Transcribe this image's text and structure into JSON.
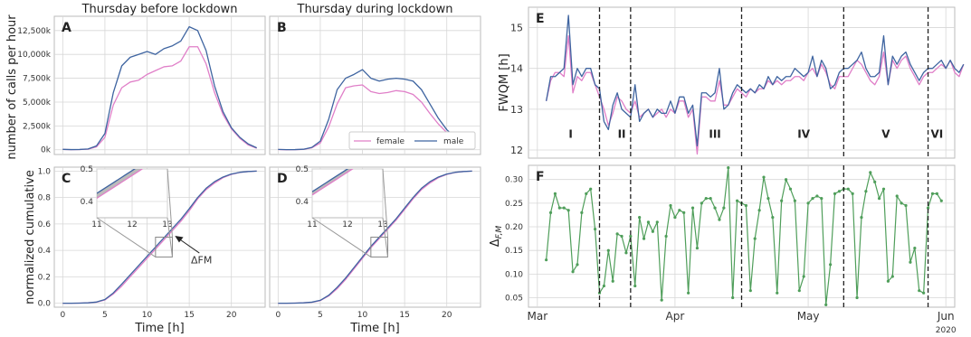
{
  "colors": {
    "female": "#e07fc8",
    "male": "#3e64a0",
    "delta": "#4f9e5a",
    "grid": "#d7d7d7",
    "frame": "#bbbbbb"
  },
  "chart_data": [
    {
      "id": "A",
      "type": "line",
      "letter": "A",
      "title": "Thursday before lockdown",
      "ylabel": "number of calls per hour",
      "yticks": [
        "0k",
        "2,500k",
        "5,000k",
        "7,500k",
        "10,000k",
        "12,500k"
      ],
      "ylim": [
        -500,
        14000
      ],
      "xlim": [
        -1,
        24
      ],
      "x": [
        0,
        1,
        2,
        3,
        4,
        5,
        6,
        7,
        8,
        9,
        10,
        11,
        12,
        13,
        14,
        15,
        16,
        17,
        18,
        19,
        20,
        21,
        22,
        23
      ],
      "series": [
        {
          "name": "female",
          "values": [
            30,
            10,
            20,
            60,
            300,
            1300,
            4700,
            6500,
            7100,
            7300,
            7900,
            8300,
            8700,
            8800,
            9300,
            10800,
            10800,
            9000,
            6000,
            3700,
            2200,
            1200,
            500,
            150
          ]
        },
        {
          "name": "male",
          "values": [
            40,
            15,
            25,
            80,
            400,
            1700,
            6000,
            8800,
            9700,
            10000,
            10300,
            10000,
            10600,
            10900,
            11400,
            12900,
            12500,
            10400,
            6700,
            4000,
            2300,
            1300,
            600,
            200
          ]
        }
      ]
    },
    {
      "id": "B",
      "type": "line",
      "letter": "B",
      "title": "Thursday during lockdown",
      "ylim": [
        -500,
        14000
      ],
      "xlim": [
        -1,
        24
      ],
      "legend": [
        "female",
        "male"
      ],
      "legend_position": "bottom-right",
      "x": [
        0,
        1,
        2,
        3,
        4,
        5,
        6,
        7,
        8,
        9,
        10,
        11,
        12,
        13,
        14,
        15,
        16,
        17,
        18,
        19,
        20,
        21,
        22,
        23
      ],
      "series": [
        {
          "name": "female",
          "values": [
            20,
            5,
            10,
            40,
            200,
            700,
            2400,
            4800,
            6500,
            6700,
            6800,
            6100,
            5900,
            6000,
            6200,
            6100,
            5800,
            5000,
            3800,
            2700,
            1800,
            1100,
            500,
            150
          ]
        },
        {
          "name": "male",
          "values": [
            30,
            10,
            15,
            50,
            250,
            900,
            3200,
            6300,
            7500,
            7900,
            8400,
            7500,
            7200,
            7400,
            7500,
            7400,
            7200,
            6300,
            4800,
            3300,
            2100,
            1300,
            600,
            200
          ]
        }
      ]
    },
    {
      "id": "C",
      "type": "line",
      "letter": "C",
      "ylabel": "normalized cumulative",
      "xlabel": "Time [h]",
      "yticks": [
        "0.0",
        "0.2",
        "0.4",
        "0.6",
        "0.8",
        "1.0"
      ],
      "xticks": [
        "0",
        "5",
        "10",
        "15",
        "20"
      ],
      "ylim": [
        -0.03,
        1.03
      ],
      "xlim": [
        -1,
        24
      ],
      "annotation": "ΔFM",
      "inset": {
        "xticks": [
          "11",
          "12",
          "13"
        ],
        "yticks": [
          "0.4",
          "0.5"
        ],
        "xlim": [
          11,
          13
        ],
        "ylim": [
          0.35,
          0.5
        ]
      },
      "x": [
        0,
        1,
        2,
        3,
        4,
        5,
        6,
        7,
        8,
        9,
        10,
        11,
        12,
        13,
        14,
        15,
        16,
        17,
        18,
        19,
        20,
        21,
        22,
        23
      ],
      "series": [
        {
          "name": "female",
          "values": [
            0.0,
            0.0,
            0.001,
            0.003,
            0.008,
            0.025,
            0.07,
            0.13,
            0.2,
            0.27,
            0.34,
            0.41,
            0.48,
            0.55,
            0.62,
            0.7,
            0.79,
            0.86,
            0.91,
            0.95,
            0.975,
            0.99,
            0.997,
            1.0
          ]
        },
        {
          "name": "male",
          "values": [
            0.0,
            0.0,
            0.001,
            0.003,
            0.009,
            0.028,
            0.078,
            0.145,
            0.215,
            0.285,
            0.355,
            0.425,
            0.495,
            0.565,
            0.635,
            0.715,
            0.8,
            0.87,
            0.92,
            0.955,
            0.978,
            0.991,
            0.997,
            1.0
          ]
        }
      ]
    },
    {
      "id": "D",
      "type": "line",
      "letter": "D",
      "xlabel": "Time [h]",
      "xticks": [
        "0",
        "5",
        "10",
        "15",
        "20"
      ],
      "ylim": [
        -0.03,
        1.03
      ],
      "xlim": [
        -1,
        24
      ],
      "inset": {
        "xticks": [
          "11",
          "12",
          "13"
        ],
        "yticks": [
          "0.4",
          "0.5"
        ],
        "xlim": [
          11,
          13
        ],
        "ylim": [
          0.35,
          0.5
        ]
      },
      "x": [
        0,
        1,
        2,
        3,
        4,
        5,
        6,
        7,
        8,
        9,
        10,
        11,
        12,
        13,
        14,
        15,
        16,
        17,
        18,
        19,
        20,
        21,
        22,
        23
      ],
      "series": [
        {
          "name": "female",
          "values": [
            0.0,
            0.0,
            0.001,
            0.003,
            0.007,
            0.02,
            0.055,
            0.11,
            0.18,
            0.26,
            0.34,
            0.42,
            0.49,
            0.56,
            0.63,
            0.71,
            0.79,
            0.86,
            0.91,
            0.95,
            0.975,
            0.99,
            0.997,
            1.0
          ]
        },
        {
          "name": "male",
          "values": [
            0.0,
            0.0,
            0.001,
            0.003,
            0.008,
            0.022,
            0.06,
            0.12,
            0.19,
            0.27,
            0.35,
            0.43,
            0.5,
            0.57,
            0.64,
            0.72,
            0.8,
            0.87,
            0.92,
            0.955,
            0.978,
            0.991,
            0.997,
            1.0
          ]
        }
      ]
    },
    {
      "id": "E",
      "type": "line",
      "letter": "E",
      "ylabel": "FWQM [h]",
      "yticks": [
        "12",
        "13",
        "14",
        "15"
      ],
      "ylim": [
        11.8,
        15.5
      ],
      "xlim": [
        -2,
        94
      ],
      "phases": [
        "I",
        "II",
        "III",
        "IV",
        "V",
        "VI"
      ],
      "phase_x": [
        10,
        23,
        54,
        78,
        70,
        88
      ],
      "dividers_day": [
        14,
        21,
        46,
        94,
        109
      ],
      "series": [
        {
          "name": "female",
          "values": [
            13.2,
            13.7,
            13.9,
            13.9,
            13.8,
            14.8,
            13.4,
            13.8,
            13.7,
            13.9,
            13.9,
            13.6,
            13.3,
            13.0,
            12.6,
            12.9,
            13.3,
            13.2,
            13.0,
            12.9,
            13.2,
            12.8,
            12.9,
            13.0,
            12.8,
            12.9,
            13.0,
            12.8,
            13.0,
            12.9,
            13.2,
            13.2,
            12.8,
            13.0,
            11.9,
            13.3,
            13.3,
            13.2,
            13.2,
            13.7,
            13.1,
            13.1,
            13.3,
            13.5,
            13.4,
            13.3,
            13.5,
            13.4,
            13.5,
            13.5,
            13.7,
            13.6,
            13.7,
            13.6,
            13.7,
            13.7,
            13.8,
            13.8,
            13.7,
            13.9,
            14.0,
            13.8,
            14.1,
            13.9,
            13.6,
            13.5,
            13.8,
            13.8,
            13.8,
            14.0,
            14.2,
            14.1,
            13.9,
            13.7,
            13.6,
            13.8,
            14.4,
            13.6,
            14.2,
            14.0,
            14.2,
            14.3,
            14.0,
            13.8,
            13.6,
            13.8,
            13.9,
            13.9,
            14.0,
            14.1,
            14.0,
            14.2,
            13.9,
            13.8,
            14.1
          ]
        },
        {
          "name": "male",
          "values": [
            13.2,
            13.8,
            13.8,
            13.9,
            14.0,
            15.3,
            13.6,
            14.0,
            13.8,
            14.0,
            14.0,
            13.6,
            13.5,
            12.7,
            12.5,
            13.1,
            13.4,
            13.0,
            12.9,
            12.8,
            13.6,
            12.7,
            12.9,
            13.0,
            12.8,
            13.0,
            12.9,
            12.9,
            13.2,
            12.9,
            13.3,
            13.3,
            12.9,
            13.1,
            12.1,
            13.4,
            13.4,
            13.3,
            13.4,
            14.0,
            13.0,
            13.1,
            13.4,
            13.6,
            13.5,
            13.4,
            13.5,
            13.4,
            13.6,
            13.5,
            13.8,
            13.6,
            13.8,
            13.7,
            13.8,
            13.8,
            14.0,
            13.9,
            13.8,
            13.9,
            14.3,
            13.8,
            14.2,
            14.0,
            13.5,
            13.6,
            13.9,
            14.0,
            14.0,
            14.1,
            14.2,
            14.4,
            14.0,
            13.8,
            13.8,
            13.9,
            14.8,
            13.6,
            14.3,
            14.1,
            14.3,
            14.4,
            14.1,
            13.9,
            13.7,
            13.9,
            14.0,
            14.0,
            14.1,
            14.2,
            14.0,
            14.2,
            14.0,
            13.9,
            14.1
          ]
        }
      ]
    },
    {
      "id": "F",
      "type": "line",
      "letter": "F",
      "ylabel": "Δ_{F,M}",
      "yticks": [
        "0.05",
        "0.10",
        "0.15",
        "0.20",
        "0.25",
        "0.30"
      ],
      "ylim": [
        0.03,
        0.33
      ],
      "xticks": [
        "Mar",
        "Apr",
        "May",
        "Jun"
      ],
      "xtick_sub": "2020",
      "series": [
        {
          "name": "Δ_{F,M}",
          "values": [
            0.13,
            0.23,
            0.27,
            0.24,
            0.24,
            0.235,
            0.105,
            0.12,
            0.23,
            0.27,
            0.28,
            0.195,
            0.06,
            0.075,
            0.15,
            0.085,
            0.185,
            0.18,
            0.145,
            0.18,
            0.075,
            0.22,
            0.175,
            0.21,
            0.19,
            0.21,
            0.045,
            0.18,
            0.245,
            0.22,
            0.235,
            0.23,
            0.06,
            0.24,
            0.155,
            0.25,
            0.26,
            0.26,
            0.24,
            0.215,
            0.24,
            0.325,
            0.05,
            0.255,
            0.25,
            0.245,
            0.065,
            0.175,
            0.235,
            0.305,
            0.26,
            0.22,
            0.06,
            0.255,
            0.3,
            0.28,
            0.255,
            0.065,
            0.095,
            0.25,
            0.26,
            0.265,
            0.26,
            0.035,
            0.12,
            0.27,
            0.275,
            0.28,
            0.28,
            0.27,
            0.05,
            0.22,
            0.275,
            0.315,
            0.295,
            0.26,
            0.28,
            0.085,
            0.095,
            0.265,
            0.25,
            0.245,
            0.125,
            0.155,
            0.065,
            0.06,
            0.24,
            0.27,
            0.27,
            0.255
          ]
        }
      ]
    }
  ]
}
